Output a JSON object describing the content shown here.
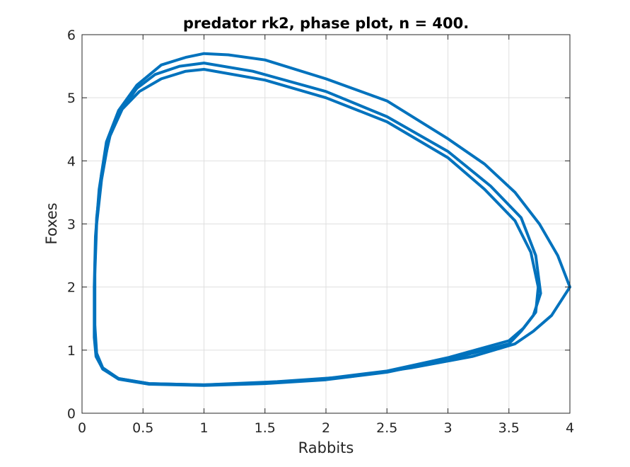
{
  "chart_data": {
    "type": "line",
    "title": "predator rk2, phase plot, n = 400.",
    "xlabel": "Rabbits",
    "ylabel": "Foxes",
    "xlim": [
      0,
      4
    ],
    "ylim": [
      0,
      6
    ],
    "xticks": [
      0,
      0.5,
      1,
      1.5,
      2,
      2.5,
      3,
      3.5,
      4
    ],
    "xtick_labels": [
      "0",
      "0.5",
      "1",
      "1.5",
      "2",
      "2.5",
      "3",
      "3.5",
      "4"
    ],
    "yticks": [
      0,
      1,
      2,
      3,
      4,
      5,
      6
    ],
    "ytick_labels": [
      "0",
      "1",
      "2",
      "3",
      "4",
      "5",
      "6"
    ],
    "grid": true,
    "box": true,
    "line_color": "#0072BD",
    "axis_color": "#262626",
    "grid_color": "#dfdfdf",
    "series": [
      {
        "x": [
          1.0,
          1.2,
          1.5,
          2.0,
          2.5,
          3.0,
          3.3,
          3.55,
          3.75,
          3.9,
          4.0,
          3.85,
          3.7,
          3.55,
          3.2,
          2.7,
          2.2,
          1.6,
          1.0,
          0.55,
          0.3,
          0.17,
          0.115,
          0.1,
          0.1,
          0.11,
          0.14,
          0.2,
          0.3,
          0.45,
          0.65,
          0.85,
          1.0
        ],
        "y": [
          5.7,
          5.68,
          5.6,
          5.3,
          4.95,
          4.35,
          3.95,
          3.5,
          3.0,
          2.5,
          2.0,
          1.55,
          1.3,
          1.1,
          0.9,
          0.72,
          0.58,
          0.5,
          0.45,
          0.47,
          0.55,
          0.7,
          0.9,
          1.2,
          2.0,
          2.8,
          3.55,
          4.3,
          4.8,
          5.2,
          5.52,
          5.64,
          5.7
        ]
      },
      {
        "x": [
          1.0,
          1.4,
          2.0,
          2.5,
          3.0,
          3.35,
          3.6,
          3.72,
          3.76,
          3.7,
          3.6,
          3.5,
          3.0,
          2.5,
          2.0,
          1.5,
          1.0,
          0.55,
          0.3,
          0.17,
          0.12,
          0.105,
          0.105,
          0.12,
          0.16,
          0.22,
          0.32,
          0.45,
          0.6,
          0.8,
          1.0
        ],
        "y": [
          5.55,
          5.42,
          5.1,
          4.7,
          4.15,
          3.6,
          3.1,
          2.5,
          1.9,
          1.55,
          1.3,
          1.1,
          0.85,
          0.65,
          0.53,
          0.47,
          0.44,
          0.46,
          0.54,
          0.7,
          0.92,
          1.3,
          2.2,
          3.0,
          3.7,
          4.35,
          4.8,
          5.15,
          5.37,
          5.5,
          5.55
        ]
      },
      {
        "x": [
          1.0,
          1.5,
          2.0,
          2.5,
          3.0,
          3.3,
          3.55,
          3.68,
          3.74,
          3.72,
          3.62,
          3.5,
          3.0,
          2.5,
          2.0,
          1.5,
          1.0,
          0.55,
          0.3,
          0.17,
          0.12,
          0.105,
          0.105,
          0.12,
          0.16,
          0.23,
          0.33,
          0.47,
          0.65,
          0.85,
          1.0
        ],
        "y": [
          5.45,
          5.28,
          5.0,
          4.62,
          4.05,
          3.55,
          3.05,
          2.55,
          2.0,
          1.6,
          1.35,
          1.15,
          0.88,
          0.67,
          0.55,
          0.48,
          0.45,
          0.47,
          0.55,
          0.72,
          0.95,
          1.4,
          2.3,
          3.1,
          3.8,
          4.4,
          4.82,
          5.1,
          5.3,
          5.42,
          5.45
        ]
      }
    ]
  }
}
